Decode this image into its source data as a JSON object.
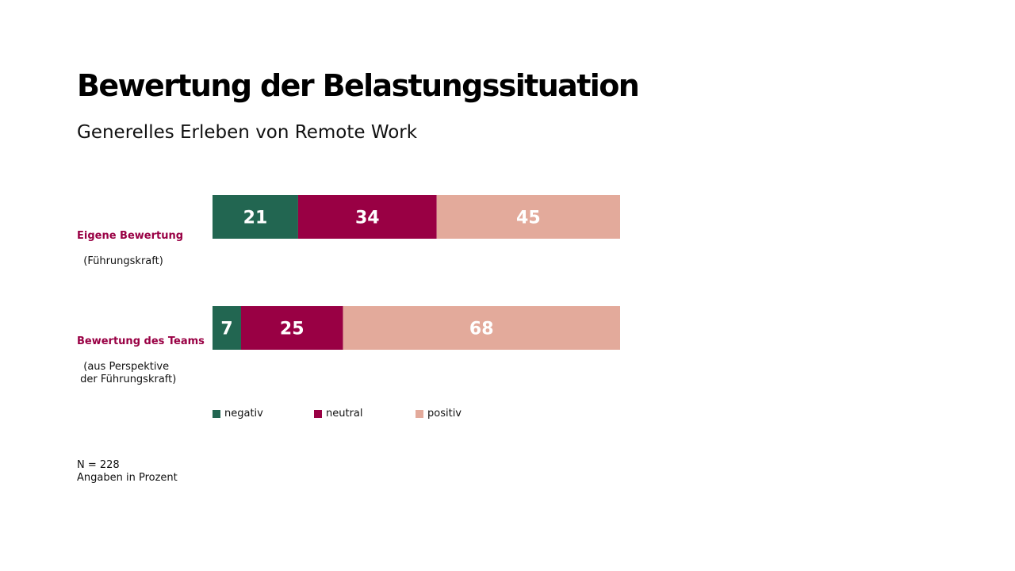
{
  "title": "Bewertung der Belastungssituation",
  "subtitle": "Generelles Erleben von Remote Work",
  "footnote": {
    "n": "N = 228",
    "unit": "Angaben in Prozent"
  },
  "colors": {
    "negativ": "#226651",
    "neutral": "#990044",
    "positiv": "#e3aa9b",
    "label_accent": "#990044"
  },
  "chart_data": {
    "type": "bar",
    "orientation": "horizontal",
    "stacked": true,
    "normalized": true,
    "categories": [
      {
        "title": "Eigene Bewertung",
        "detail": "(Führungskraft)"
      },
      {
        "title": "Bewertung des Teams",
        "detail": "(aus Perspektive\n der Führungskraft)"
      }
    ],
    "series": [
      {
        "name": "negativ",
        "values": [
          21,
          7
        ]
      },
      {
        "name": "neutral",
        "values": [
          34,
          25
        ]
      },
      {
        "name": "positiv",
        "values": [
          45,
          68
        ]
      }
    ],
    "xlim": [
      0,
      100
    ],
    "grid": false,
    "legend": "bottom"
  }
}
